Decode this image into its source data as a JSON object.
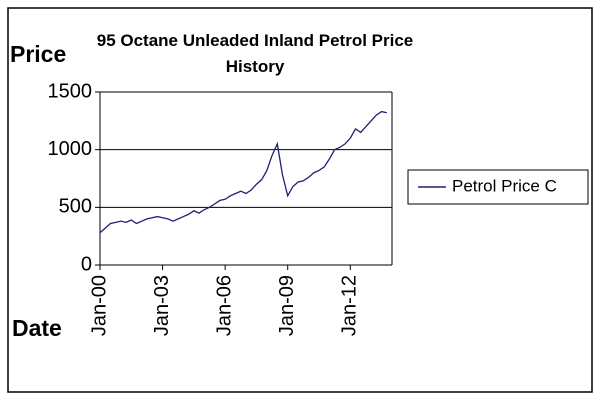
{
  "chart_data": {
    "type": "line",
    "title": "95 Octane Unleaded Inland Petrol Price History",
    "y_label": "Price",
    "x_label": "Date",
    "categories": [
      "Jan-00",
      null,
      null,
      null,
      null,
      null,
      null,
      null,
      null,
      null,
      null,
      null,
      "Jan-03",
      null,
      null,
      null,
      null,
      null,
      null,
      null,
      null,
      null,
      null,
      null,
      "Jan-06",
      null,
      null,
      null,
      null,
      null,
      null,
      null,
      null,
      null,
      null,
      null,
      "Jan-09",
      null,
      null,
      null,
      null,
      null,
      null,
      null,
      null,
      null,
      null,
      null,
      "Jan-12",
      null,
      null,
      null,
      null,
      null,
      null,
      null
    ],
    "series": [
      {
        "name": "Petrol Price C",
        "color": "#1f1f7a",
        "values": [
          280,
          320,
          360,
          370,
          380,
          370,
          390,
          360,
          380,
          400,
          410,
          420,
          410,
          400,
          380,
          400,
          420,
          440,
          470,
          450,
          480,
          500,
          530,
          560,
          570,
          600,
          620,
          640,
          620,
          650,
          700,
          740,
          820,
          950,
          1050,
          780,
          600,
          680,
          720,
          730,
          760,
          800,
          820,
          850,
          920,
          1000,
          1020,
          1050,
          1100,
          1180,
          1150,
          1200,
          1250,
          1300,
          1330,
          1320
        ]
      }
    ],
    "ylim": [
      0,
      1500
    ],
    "yticks": [
      0,
      500,
      1000,
      1500
    ],
    "grid": true,
    "legend": "right"
  }
}
